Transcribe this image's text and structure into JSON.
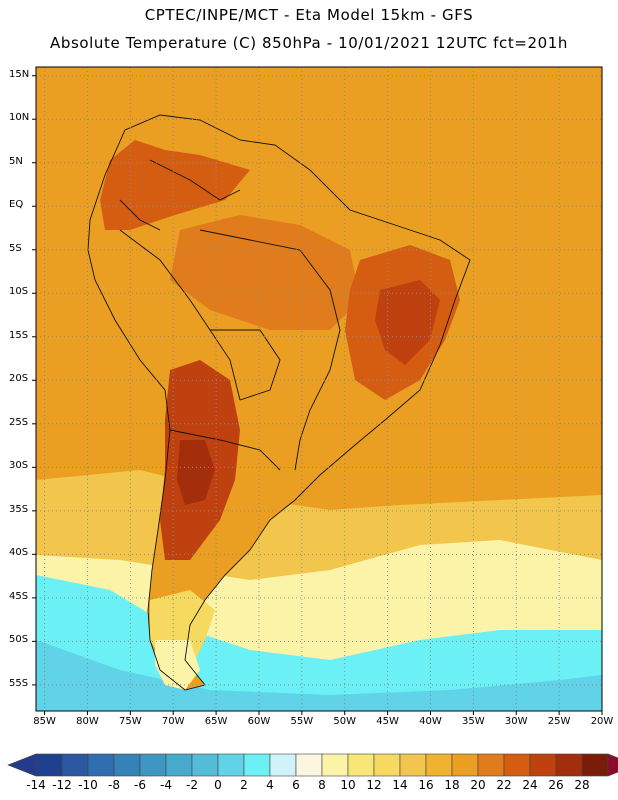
{
  "header": {
    "line1": "CPTEC/INPE/MCT -  Eta Model 15km - GFS",
    "line2": "Absolute Temperature (C) 850hPa - 10/01/2021 12UTC fct=201h"
  },
  "map": {
    "lat_range": [
      -58,
      16
    ],
    "lon_range": [
      -86,
      -20
    ],
    "lat_ticks": [
      "15N",
      "10N",
      "5N",
      "EQ",
      "5S",
      "10S",
      "15S",
      "20S",
      "25S",
      "30S",
      "35S",
      "40S",
      "45S",
      "50S",
      "55S"
    ],
    "lon_ticks": [
      "85W",
      "80W",
      "75W",
      "70W",
      "65W",
      "60W",
      "55W",
      "50W",
      "45W",
      "40W",
      "35W",
      "30W",
      "25W",
      "20W"
    ],
    "regions": [
      {
        "name": "ocean-background",
        "value": 18
      },
      {
        "name": "north-atlantic-warm",
        "value": 19
      },
      {
        "name": "south-atlantic-mid",
        "value": 14
      },
      {
        "name": "south-atlantic-cool",
        "value": 9
      },
      {
        "name": "southern-ocean-cold",
        "value": 3
      },
      {
        "name": "southern-ocean-colder",
        "value": 0
      },
      {
        "name": "continent-base",
        "value": 19
      },
      {
        "name": "andes-northwest",
        "value": 22
      },
      {
        "name": "amazon-warm",
        "value": 20
      },
      {
        "name": "northeast-brazil",
        "value": 23
      },
      {
        "name": "northeast-brazil-core",
        "value": 25
      },
      {
        "name": "chaco-core",
        "value": 24
      },
      {
        "name": "chaco-hot",
        "value": 26
      },
      {
        "name": "patagonia-mild",
        "value": 12
      },
      {
        "name": "patagonia-cool",
        "value": 8
      }
    ]
  },
  "colorbar": {
    "labels": [
      "-14",
      "-12",
      "-10",
      "-8",
      "-6",
      "-4",
      "-2",
      "0",
      "2",
      "4",
      "6",
      "8",
      "10",
      "12",
      "14",
      "16",
      "18",
      "20",
      "22",
      "24",
      "26",
      "28"
    ],
    "colors": [
      "#1f3f8f",
      "#2b58a0",
      "#2f6fb0",
      "#3582b8",
      "#3f96c2",
      "#47a9cc",
      "#55bcd8",
      "#60d3e8",
      "#6af0f5",
      "#cff3f8",
      "#fcf6e0",
      "#fbf3a8",
      "#f8e777",
      "#f6d95f",
      "#f2c64c",
      "#efb32f",
      "#ea9e22",
      "#e07c1c",
      "#d45d12",
      "#bf4110",
      "#a22e0c",
      "#7a1c0a"
    ],
    "under_color": "#243a8c",
    "over_color": "#8c0a2a"
  }
}
